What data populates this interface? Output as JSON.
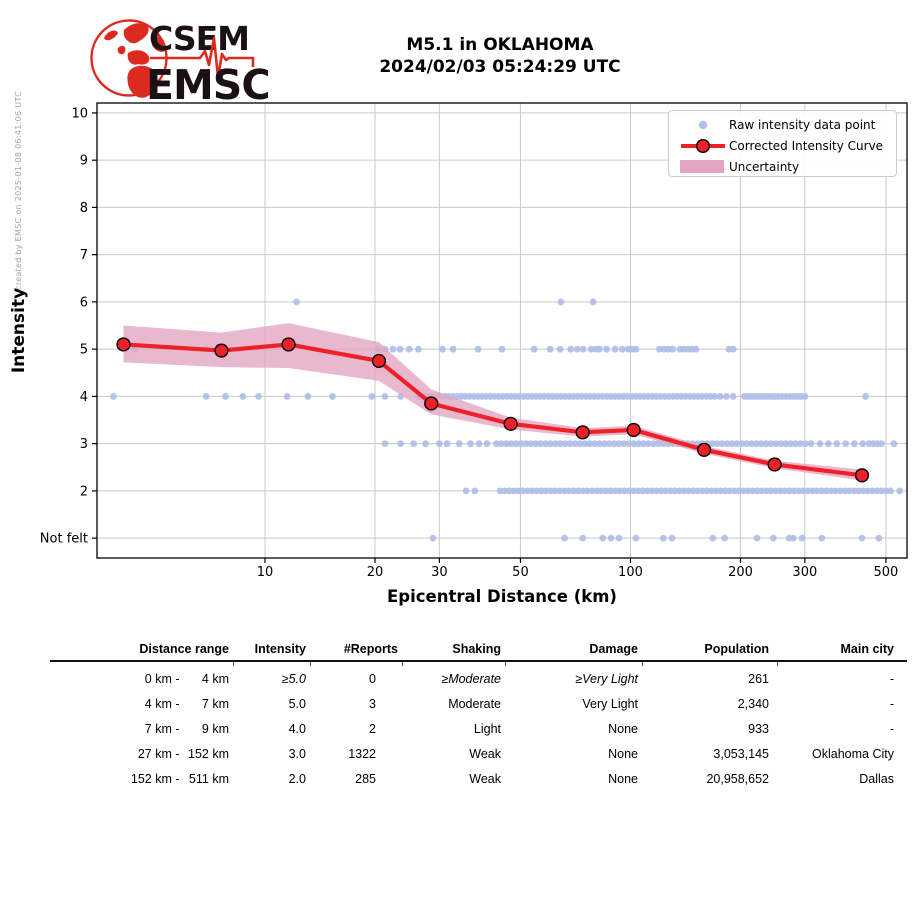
{
  "credit": "created by EMSC on 2025-01-08 06:41:06 UTC",
  "logo": {
    "acronym_top": "CSEM",
    "acronym_bottom": "EMSC",
    "red": "#dd2a20",
    "text_color": "#1b1013"
  },
  "title": {
    "line1": "M5.1 in OKLAHOMA",
    "line2": "2024/02/03 05:24:29 UTC"
  },
  "chart_data": {
    "type": "scatter",
    "title": "M5.1 in OKLAHOMA 2024/02/03 05:24:29 UTC",
    "xlabel": "Epicentral Distance (km)",
    "ylabel": "Intensity",
    "x_scale": "log",
    "x_ticks": [
      10,
      20,
      30,
      50,
      100,
      200,
      300,
      500
    ],
    "x_range": [
      3.47,
      571
    ],
    "y_tick_values": [
      1,
      2,
      3,
      4,
      5,
      6,
      7,
      8,
      9,
      10
    ],
    "y_tick_labels": [
      "Not felt",
      "2",
      "3",
      "4",
      "5",
      "6",
      "7",
      "8",
      "9",
      "10"
    ],
    "y_range": [
      0.58,
      10.21
    ],
    "grid": true,
    "legend_position": "upper right",
    "legend": [
      {
        "marker": "dot",
        "label": "Raw intensity data point"
      },
      {
        "marker": "line-marker",
        "label": "Corrected Intensity Curve"
      },
      {
        "marker": "patch",
        "label": "Uncertainty"
      }
    ],
    "colors": {
      "raw": "#b1c0ea",
      "curve": "#ee2129",
      "band": "#e2a6c3",
      "grid": "#c9c9c9",
      "axis": "#000000"
    },
    "raw_points": {
      "6": [
        12.2,
        64.5,
        79
      ],
      "5": [
        4.4,
        6.9,
        20.3,
        21.3,
        22.4,
        23.4,
        24.8,
        26.3,
        30.6,
        32.7,
        38.3,
        44.5,
        54.5,
        60.3,
        64.2,
        68.6,
        71.5,
        74.2,
        78.1,
        80.4,
        82.2,
        86,
        90.8,
        95,
        98.5,
        101,
        103.5,
        120,
        123.5,
        127,
        130.5,
        136.6,
        140,
        144,
        147.7,
        151,
        186,
        191
      ],
      "4": [
        3.85,
        6.9,
        7.8,
        8.7,
        9.6,
        11.5,
        13.1,
        15.3,
        19.6,
        21.3,
        23.5,
        [
          26.5,
          170,
          72
        ],
        176,
        183,
        191,
        [
          205,
          300,
          17
        ],
        440
      ],
      "3": [
        21.3,
        23.5,
        25.5,
        27.5,
        30,
        31.5,
        34,
        36.5,
        38.5,
        40.5,
        [
          43,
          301,
          64
        ],
        312,
        330,
        348,
        367,
        388,
        410,
        432,
        450,
        462,
        474,
        486,
        526
      ],
      "2": [
        35.5,
        37.5,
        [
          44,
          515,
          86
        ],
        545
      ],
      "1": [
        28.8,
        66,
        74,
        84,
        88.5,
        93,
        103.5,
        123,
        130,
        168,
        181,
        222,
        246,
        272,
        279,
        295,
        334,
        430,
        478
      ]
    },
    "curve": {
      "name": "Corrected Intensity Curve",
      "distance_km": [
        4.1,
        7.6,
        11.6,
        20.5,
        28.5,
        47,
        74,
        102,
        159,
        248,
        430
      ],
      "intensity": [
        5.1,
        4.97,
        5.1,
        4.75,
        3.85,
        3.42,
        3.24,
        3.29,
        2.87,
        2.56,
        2.33
      ]
    },
    "uncertainty": {
      "distance_km": [
        4.1,
        7.6,
        11.6,
        20.5,
        28.5,
        47,
        74,
        102,
        159,
        248,
        430
      ],
      "upper": [
        5.5,
        5.35,
        5.55,
        5.15,
        4.15,
        3.55,
        3.33,
        3.38,
        2.95,
        2.64,
        2.45
      ],
      "lower": [
        4.72,
        4.62,
        4.6,
        4.33,
        3.62,
        3.3,
        3.15,
        3.2,
        2.79,
        2.48,
        2.22
      ]
    }
  },
  "table": {
    "headers": [
      "Distance range",
      "Intensity",
      "#Reports",
      "Shaking",
      "Damage",
      "Population",
      "Main city"
    ],
    "rows": [
      {
        "from": "0 km",
        "to": "4 km",
        "intensity": "≥5.0",
        "reports": "0",
        "shaking": "≥Moderate",
        "damage": "≥Very Light",
        "population": "261",
        "city": "-",
        "em": true
      },
      {
        "from": "4 km",
        "to": "7 km",
        "intensity": "5.0",
        "reports": "3",
        "shaking": "Moderate",
        "damage": "Very Light",
        "population": "2,340",
        "city": "-"
      },
      {
        "from": "7 km",
        "to": "9 km",
        "intensity": "4.0",
        "reports": "2",
        "shaking": "Light",
        "damage": "None",
        "population": "933",
        "city": "-"
      },
      {
        "from": "27 km",
        "to": "152 km",
        "intensity": "3.0",
        "reports": "1322",
        "shaking": "Weak",
        "damage": "None",
        "population": "3,053,145",
        "city": "Oklahoma City"
      },
      {
        "from": "152 km",
        "to": "511 km",
        "intensity": "2.0",
        "reports": "285",
        "shaking": "Weak",
        "damage": "None",
        "population": "20,958,652",
        "city": "Dallas"
      }
    ]
  }
}
